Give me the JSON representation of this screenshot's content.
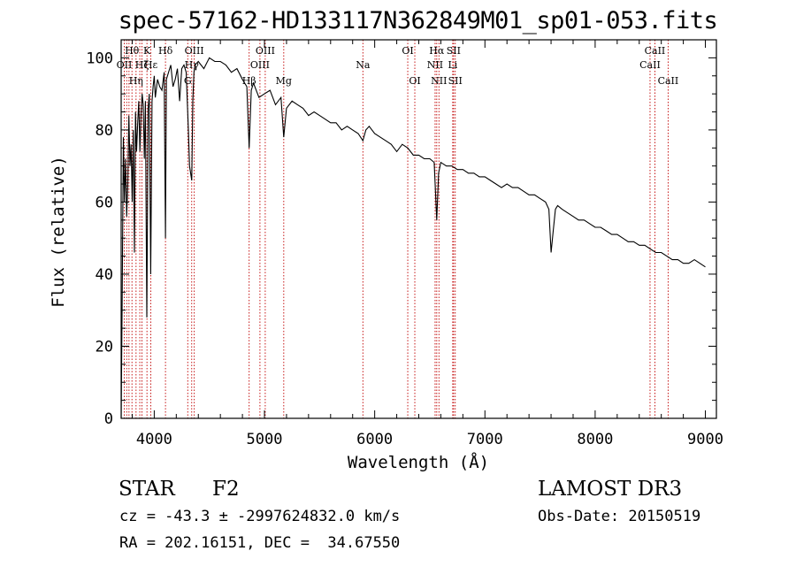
{
  "chart_data": {
    "type": "line",
    "title": "spec-57162-HD133117N362849M01_sp01-053.fits",
    "xlabel": "Wavelength (Å)",
    "ylabel": "Flux (relative)",
    "xlim": [
      3700,
      9100
    ],
    "ylim": [
      0,
      105
    ],
    "xticks": [
      4000,
      5000,
      6000,
      7000,
      8000,
      9000
    ],
    "yticks": [
      0,
      20,
      40,
      60,
      80,
      100
    ],
    "series": [
      {
        "x": [
          3700,
          3710,
          3720,
          3730,
          3740,
          3750,
          3760,
          3770,
          3780,
          3790,
          3800,
          3810,
          3820,
          3830,
          3840,
          3850,
          3860,
          3870,
          3880,
          3890,
          3900,
          3910,
          3920,
          3933,
          3945,
          3955,
          3968,
          3980,
          3990,
          4000,
          4010,
          4030,
          4050,
          4070,
          4090,
          4102,
          4110,
          4130,
          4150,
          4170,
          4190,
          4210,
          4230,
          4250,
          4270,
          4290,
          4310,
          4320,
          4340,
          4350,
          4360,
          4370,
          4400,
          4450,
          4500,
          4550,
          4600,
          4650,
          4700,
          4750,
          4800,
          4840,
          4861,
          4880,
          4900,
          4950,
          5000,
          5050,
          5100,
          5150,
          5175,
          5200,
          5250,
          5300,
          5350,
          5400,
          5450,
          5500,
          5550,
          5600,
          5650,
          5700,
          5750,
          5800,
          5850,
          5893,
          5920,
          5950,
          6000,
          6050,
          6100,
          6150,
          6200,
          6250,
          6300,
          6350,
          6400,
          6450,
          6500,
          6540,
          6563,
          6580,
          6600,
          6650,
          6700,
          6750,
          6800,
          6850,
          6900,
          6950,
          7000,
          7050,
          7100,
          7150,
          7200,
          7250,
          7300,
          7350,
          7400,
          7450,
          7500,
          7550,
          7580,
          7600,
          7620,
          7640,
          7660,
          7700,
          7750,
          7800,
          7850,
          7900,
          7950,
          8000,
          8050,
          8100,
          8150,
          8200,
          8250,
          8300,
          8350,
          8400,
          8450,
          8500,
          8550,
          8600,
          8650,
          8700,
          8750,
          8800,
          8850,
          8900,
          8950,
          9000
        ],
        "y": [
          0,
          35,
          78,
          60,
          72,
          56,
          65,
          84,
          70,
          76,
          60,
          80,
          46,
          85,
          74,
          82,
          88,
          74,
          84,
          90,
          87,
          72,
          88,
          28,
          86,
          90,
          40,
          88,
          92,
          95,
          89,
          94,
          92,
          91,
          96,
          50,
          94,
          96,
          98,
          92,
          94,
          97,
          88,
          97,
          98,
          96,
          80,
          70,
          66,
          88,
          96,
          98,
          99,
          97,
          100,
          99,
          99,
          98,
          96,
          97,
          94,
          92,
          75,
          91,
          93,
          89,
          90,
          91,
          87,
          89,
          78,
          86,
          88,
          87,
          86,
          84,
          85,
          84,
          83,
          82,
          82,
          80,
          81,
          80,
          79,
          77,
          80,
          81,
          79,
          78,
          77,
          76,
          74,
          76,
          75,
          73,
          73,
          72,
          72,
          71,
          55,
          68,
          71,
          70,
          70,
          69,
          69,
          68,
          68,
          67,
          67,
          66,
          65,
          64,
          65,
          64,
          64,
          63,
          62,
          62,
          61,
          60,
          58,
          46,
          52,
          58,
          59,
          58,
          57,
          56,
          55,
          55,
          54,
          53,
          53,
          52,
          51,
          51,
          50,
          49,
          49,
          48,
          48,
          47,
          46,
          46,
          45,
          44,
          44,
          43,
          43,
          44,
          43,
          42
        ]
      }
    ],
    "lines": [
      {
        "wl": 3728,
        "label": "OII",
        "row": 1
      },
      {
        "wl": 3750,
        "label": "",
        "row": 0
      },
      {
        "wl": 3771,
        "label": "",
        "row": 0
      },
      {
        "wl": 3798,
        "label": "Hθ",
        "row": 0
      },
      {
        "wl": 3835,
        "label": "Hη",
        "row": 2
      },
      {
        "wl": 3869,
        "label": "",
        "row": 0
      },
      {
        "wl": 3889,
        "label": "Hζ",
        "row": 1
      },
      {
        "wl": 3934,
        "label": "K",
        "row": 0
      },
      {
        "wl": 3969,
        "label": "Hε",
        "row": 1
      },
      {
        "wl": 4102,
        "label": "Hδ",
        "row": 0
      },
      {
        "wl": 4304,
        "label": "G",
        "row": 2
      },
      {
        "wl": 4340,
        "label": "Hγ",
        "row": 1
      },
      {
        "wl": 4363,
        "label": "OIII",
        "row": 0
      },
      {
        "wl": 4861,
        "label": "Hβ",
        "row": 2
      },
      {
        "wl": 4959,
        "label": "OIII",
        "row": 1
      },
      {
        "wl": 5007,
        "label": "OIII",
        "row": 0
      },
      {
        "wl": 5175,
        "label": "Mg",
        "row": 2
      },
      {
        "wl": 5893,
        "label": "Na",
        "row": 1
      },
      {
        "wl": 6300,
        "label": "OI",
        "row": 0
      },
      {
        "wl": 6364,
        "label": "OI",
        "row": 2
      },
      {
        "wl": 6548,
        "label": "NII",
        "row": 1
      },
      {
        "wl": 6563,
        "label": "Hα",
        "row": 0
      },
      {
        "wl": 6583,
        "label": "NII",
        "row": 2
      },
      {
        "wl": 6708,
        "label": "Li",
        "row": 1
      },
      {
        "wl": 6716,
        "label": "SII",
        "row": 0
      },
      {
        "wl": 6731,
        "label": "SII",
        "row": 2
      },
      {
        "wl": 8498,
        "label": "CaII",
        "row": 1
      },
      {
        "wl": 8542,
        "label": "CaII",
        "row": 0
      },
      {
        "wl": 8662,
        "label": "CaII",
        "row": 2
      }
    ]
  },
  "info": {
    "class": "STAR",
    "subclass": "F2",
    "cz": "cz = -43.3 ± -2997624832.0 km/s",
    "radec": "RA = 202.16151, DEC =  34.67550",
    "survey": "LAMOST DR3",
    "obsdate": "Obs-Date: 20150519"
  }
}
